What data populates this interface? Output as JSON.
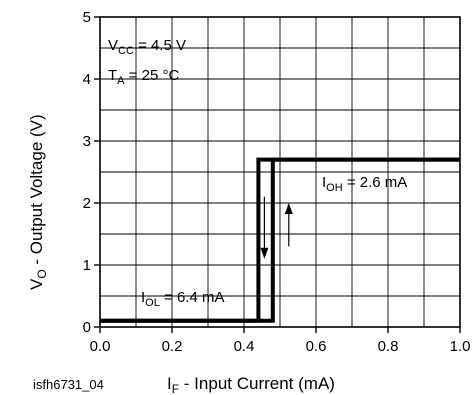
{
  "chart_data": {
    "type": "line",
    "xlabel": {
      "main": "I",
      "sub": "F",
      "rest": " - Input Current (mA)"
    },
    "ylabel": {
      "main": "V",
      "sub": "O",
      "rest": " - Output Voltage (V)"
    },
    "xlim": [
      0.0,
      1.0
    ],
    "ylim": [
      0,
      5
    ],
    "x_ticks": [
      "0.0",
      "0.2",
      "0.4",
      "0.6",
      "0.8",
      "1.0"
    ],
    "y_ticks": [
      "0",
      "1",
      "2",
      "3",
      "4",
      "5"
    ],
    "grid": true,
    "figure_id": "isfh6731_04",
    "series": [
      {
        "direction": "increasing",
        "x": [
          0.0,
          0.48,
          0.48,
          1.0
        ],
        "y": [
          0.1,
          0.1,
          2.7,
          2.7
        ]
      },
      {
        "direction": "decreasing",
        "x": [
          1.0,
          0.44,
          0.44,
          0.0
        ],
        "y": [
          2.7,
          2.7,
          0.1,
          0.1
        ]
      }
    ],
    "annotations": {
      "vcc": {
        "main": "V",
        "sub": "CC",
        "rest": " = 4.5 V"
      },
      "ta": {
        "main": "T",
        "sub": "A",
        "rest": " = 25 °C"
      },
      "ioh": {
        "main": "I",
        "sub": "OH",
        "rest": " = 2.6 mA"
      },
      "iol": {
        "main": "I",
        "sub": "OL",
        "rest": " = 6.4 mA"
      }
    }
  }
}
